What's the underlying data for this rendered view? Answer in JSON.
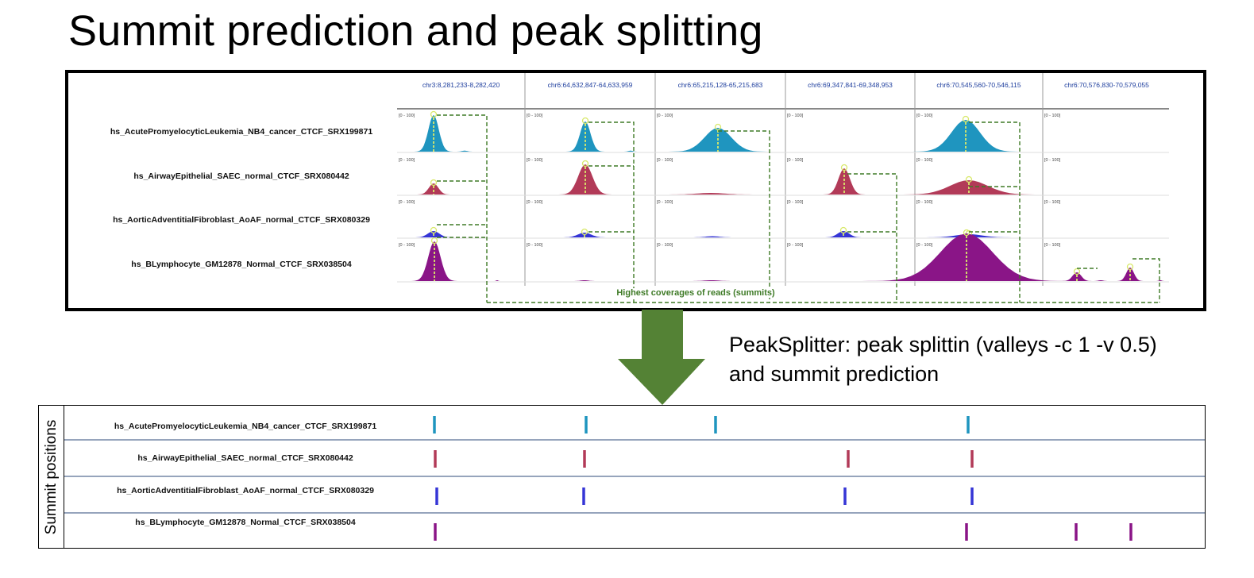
{
  "title": "Summit prediction and peak splitting",
  "genome_browser": {
    "loci": [
      "chr3:8,281,233-8,282,420",
      "chr6:64,632,847-64,633,959",
      "chr6:65,215,128-65,215,683",
      "chr6:69,347,841-69,348,953",
      "chr6:70,545,560-70,546,115",
      "chr6:70,576,830-70,579,055"
    ],
    "data_range": "[0 - 100]",
    "tracks": [
      {
        "name": "hs_AcutePromyelocyticLeukemia_NB4_cancer_CTCF_SRX199871",
        "color": "#1f95bf"
      },
      {
        "name": "hs_AirwayEpithelial_SAEC_normal_CTCF_SRX080442",
        "color": "#b23a58"
      },
      {
        "name": "hs_AorticAdventitialFibroblast_AoAF_normal_CTCF_SRX080329",
        "color": "#3535d6"
      },
      {
        "name": "hs_BLymphocyte_GM12878_Normal_CTCF_SRX038504",
        "color": "#8a1587"
      }
    ],
    "summit_annotation": "Highest coverages of reads (summits)",
    "annotation_color": "#3e7a26",
    "summit_marker_color": "#d8e86a"
  },
  "arrow_color": "#548235",
  "method": {
    "text": "PeakSplitter: peak splittin (valleys -c 1 -v 0.5) and summit prediction"
  },
  "summit_table": {
    "side_label": "Summit positions",
    "rows": [
      {
        "name": "hs_AcutePromyelocyticLeukemia_NB4_cancer_CTCF_SRX199871",
        "color": "#1f95bf"
      },
      {
        "name": "hs_AirwayEpithelial_SAEC_normal_CTCF_SRX080442",
        "color": "#b23a58"
      },
      {
        "name": "hs_AorticAdventitialFibroblast_AoAF_normal_CTCF_SRX080329",
        "color": "#3535d6"
      },
      {
        "name": "hs_BLymphocyte_GM12878_Normal_CTCF_SRX038504",
        "color": "#8a1587"
      }
    ],
    "border_color": "#2e4a7a"
  }
}
